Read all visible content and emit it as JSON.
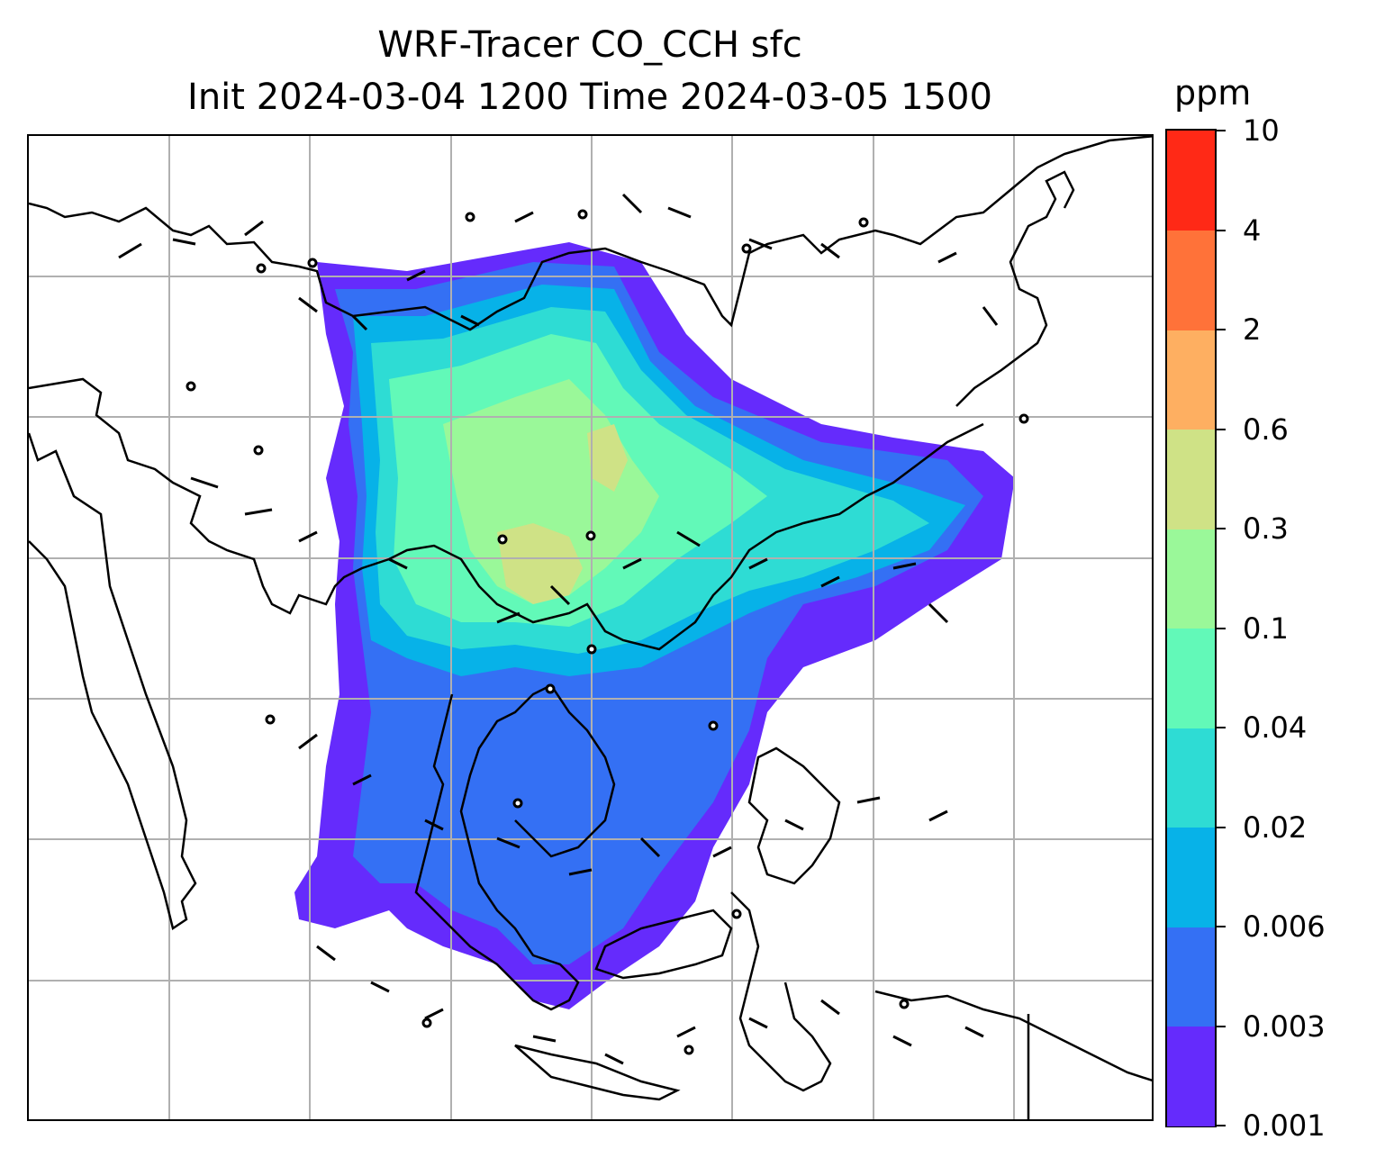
{
  "title": {
    "line1": "WRF-Tracer CO_CCH sfc",
    "line2": "Init 2024-03-04 1200 Time 2024-03-05 1500"
  },
  "colorbar": {
    "unit": "ppm",
    "levels": [
      "0.001",
      "0.003",
      "0.006",
      "0.02",
      "0.04",
      "0.1",
      "0.3",
      "0.6",
      "2",
      "4",
      "10"
    ],
    "colors": [
      "#652bfc",
      "#3470f4",
      "#07b2e8",
      "#2edcd4",
      "#62f9b8",
      "#9af899",
      "#cfe286",
      "#feaf61",
      "#ff7239",
      "#ff2916"
    ]
  },
  "map": {
    "gridline_color": "#b0b0b0",
    "coastline_color": "#000000",
    "barb_color": "#000000",
    "gridlines": true,
    "wind_barbs": true
  }
}
